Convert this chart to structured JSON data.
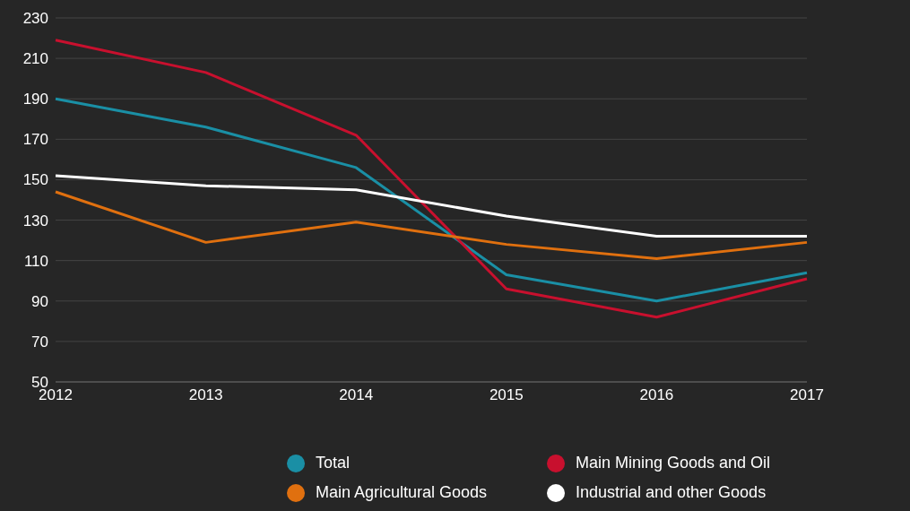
{
  "chart_data": {
    "type": "line",
    "categories": [
      "2012",
      "2013",
      "2014",
      "2015",
      "2016",
      "2017"
    ],
    "series": [
      {
        "name": "Total",
        "color": "#1a8fa5",
        "values": [
          190,
          176,
          156,
          103,
          90,
          104
        ]
      },
      {
        "name": "Main Mining Goods and Oil",
        "color": "#c8102e",
        "values": [
          219,
          203,
          172,
          96,
          82,
          101
        ]
      },
      {
        "name": "Main Agricultural Goods",
        "color": "#e0700f",
        "values": [
          144,
          119,
          129,
          118,
          111,
          119
        ]
      },
      {
        "name": "Industrial and other Goods",
        "color": "#ffffff",
        "values": [
          152,
          147,
          145,
          132,
          122,
          122
        ]
      }
    ],
    "ylim": [
      50,
      230
    ],
    "yticks": [
      50,
      70,
      90,
      110,
      130,
      150,
      170,
      190,
      210,
      230
    ],
    "grid": "y",
    "legend": "bottom right",
    "marker": "none",
    "line_style": "solid"
  }
}
